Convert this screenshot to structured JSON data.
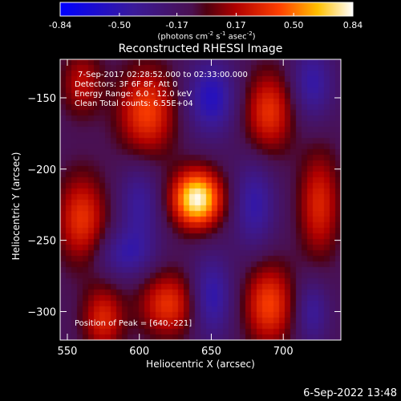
{
  "title": "Reconstructed RHESSI Image",
  "colorbar": {
    "ticks": [
      "-0.84",
      "-0.50",
      "-0.17",
      "0.17",
      "0.50",
      "0.84"
    ],
    "range": [
      -0.84,
      0.84
    ],
    "units_text": "(photons cm",
    "units_sup1": "-2",
    "units_mid1": " s",
    "units_sup2": "-1",
    "units_mid2": " asec",
    "units_sup3": "-2",
    "units_end": ")"
  },
  "annotations": {
    "time": "7-Sep-2017 02:28:52.000 to 02:33:00.000",
    "detectors": "Detectors: 3F 6F 8F, Att 0",
    "energy": "Energy Range: 6.0 - 12.0 keV",
    "clean": "Clean    Total counts: 6.55E+04",
    "peak": "Position of Peak = [640,-221]"
  },
  "footer_date": "6-Sep-2022 13:48",
  "chart_data": {
    "type": "heatmap",
    "title": "Reconstructed RHESSI Image",
    "xlabel": "Heliocentric X (arcsec)",
    "ylabel": "Heliocentric Y (arcsec)",
    "xlim": [
      545,
      740
    ],
    "ylim": [
      -320,
      -123
    ],
    "xticks": [
      550,
      600,
      650,
      700
    ],
    "xtick_labels": [
      "550",
      "600",
      "650",
      "700"
    ],
    "yticks": [
      -150,
      -200,
      -250,
      -300
    ],
    "ytick_labels": [
      "−150",
      "−200",
      "−250",
      "−300"
    ],
    "colormap": "hot-blue",
    "peak": {
      "x": 640,
      "y": -221,
      "value": 0.84
    },
    "sources": [
      {
        "x": 640,
        "y": -221,
        "amp": 1.0,
        "sx": 12,
        "sy": 14
      },
      {
        "x": 605,
        "y": -160,
        "amp": 0.55,
        "sx": 14,
        "sy": 22
      },
      {
        "x": 690,
        "y": -160,
        "amp": 0.5,
        "sx": 12,
        "sy": 20
      },
      {
        "x": 725,
        "y": -225,
        "amp": 0.45,
        "sx": 10,
        "sy": 26
      },
      {
        "x": 560,
        "y": -235,
        "amp": 0.5,
        "sx": 12,
        "sy": 22
      },
      {
        "x": 620,
        "y": -295,
        "amp": 0.5,
        "sx": 14,
        "sy": 16
      },
      {
        "x": 690,
        "y": -295,
        "amp": 0.55,
        "sx": 12,
        "sy": 20
      },
      {
        "x": 575,
        "y": -305,
        "amp": 0.45,
        "sx": 10,
        "sy": 16
      },
      {
        "x": 560,
        "y": -140,
        "amp": 0.35,
        "sx": 10,
        "sy": 16
      },
      {
        "x": 650,
        "y": -150,
        "amp": -0.45,
        "sx": 12,
        "sy": 18
      },
      {
        "x": 680,
        "y": -225,
        "amp": -0.35,
        "sx": 10,
        "sy": 22
      },
      {
        "x": 600,
        "y": -225,
        "amp": -0.3,
        "sx": 10,
        "sy": 22
      },
      {
        "x": 650,
        "y": -290,
        "amp": -0.4,
        "sx": 10,
        "sy": 20
      },
      {
        "x": 720,
        "y": -140,
        "amp": -0.35,
        "sx": 10,
        "sy": 18
      },
      {
        "x": 590,
        "y": -260,
        "amp": -0.3,
        "sx": 14,
        "sy": 12
      },
      {
        "x": 720,
        "y": -300,
        "amp": -0.3,
        "sx": 8,
        "sy": 16
      }
    ]
  }
}
